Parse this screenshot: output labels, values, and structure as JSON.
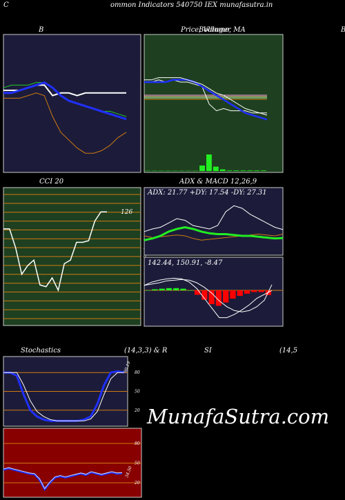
{
  "header": {
    "left": "C",
    "title": "ommon Indicators 540750 IEX munafasutra.in"
  },
  "titles": {
    "b": "B",
    "price": "Price, Volume, MA",
    "price_overlay": "Bollinger",
    "right_edge": "B",
    "cci": "CCI 20",
    "adx_macd": "ADX & MACD 12,26,9",
    "stoch": "Stochastics",
    "stoch_params": "(14,3,3) & R",
    "rsi": "SI",
    "rsi_params": "(14,5"
  },
  "watermark": "MunafaSutra.com",
  "colors": {
    "navy": "#1c1c3a",
    "green_panel": "#1e4020",
    "red_panel": "#880000",
    "orange": "#d07a10",
    "blue": "#2030ff",
    "bright_green": "#22ee22"
  },
  "chart_data": [
    {
      "type": "line",
      "name": "bollinger",
      "n": 16,
      "series": [
        {
          "role": "price",
          "values": [
            30,
            30,
            30,
            31,
            32,
            32,
            28,
            29,
            29,
            28,
            29,
            29,
            29,
            29,
            29,
            29
          ]
        },
        {
          "role": "upper",
          "values": [
            31,
            32,
            32,
            32,
            33,
            33,
            31,
            28,
            26,
            25,
            24,
            23,
            22,
            22,
            21,
            20
          ]
        },
        {
          "role": "middle",
          "values": [
            29,
            29,
            30,
            31,
            32,
            33,
            31,
            28,
            26,
            25,
            24,
            23,
            22,
            21,
            20,
            19
          ]
        },
        {
          "role": "lower",
          "values": [
            27,
            27,
            27,
            28,
            29,
            28,
            20,
            14,
            11,
            8,
            6,
            6,
            7,
            9,
            12,
            14
          ]
        }
      ],
      "ylim": [
        0,
        50
      ]
    },
    {
      "type": "line",
      "name": "price_volume_ma",
      "ylim": [
        0,
        50
      ],
      "series": [
        {
          "role": "price",
          "values": [
            30,
            30,
            31,
            30,
            31,
            30,
            30,
            29,
            28,
            20,
            17,
            18,
            17,
            17,
            17,
            16,
            16,
            16
          ]
        },
        {
          "role": "ma_blue",
          "values": [
            30,
            30,
            30,
            30,
            31,
            31,
            31,
            30,
            28,
            26,
            24,
            22,
            20,
            18,
            16,
            15,
            14,
            13
          ]
        },
        {
          "role": "ma_white",
          "values": [
            31,
            31,
            32,
            32,
            32,
            32,
            31,
            30,
            29,
            27,
            25,
            24,
            22,
            20,
            18,
            17,
            16,
            15
          ]
        }
      ],
      "volume": [
        0.5,
        0.5,
        0.5,
        0.5,
        0.5,
        0.5,
        0.5,
        0.5,
        10,
        30,
        8,
        3,
        1,
        1,
        1,
        1,
        1,
        1
      ]
    },
    {
      "type": "line",
      "name": "cci",
      "ylim": [
        -175,
        175
      ],
      "ticks": [
        "175",
        "150",
        "125",
        "100",
        "75",
        "50",
        "25",
        "0",
        "-25",
        "-50",
        "-75",
        "-100",
        "-125",
        "-150",
        "-175"
      ],
      "last_label": "126",
      "values": [
        78,
        78,
        25,
        -50,
        -25,
        -10,
        -80,
        -85,
        -60,
        -95,
        -20,
        -10,
        40,
        40,
        45,
        100,
        126,
        126
      ]
    },
    {
      "type": "line",
      "name": "adx",
      "label": "ADX: 21.77 +DY: 17.54 -DY: 27.31",
      "series": [
        {
          "role": "adx",
          "values": [
            20,
            18,
            19,
            20,
            21,
            20,
            17,
            15,
            16,
            17,
            18,
            19,
            20,
            21,
            22,
            21,
            20,
            22
          ]
        },
        {
          "role": "plus_di",
          "values": [
            15,
            17,
            20,
            25,
            28,
            30,
            28,
            25,
            23,
            22,
            22,
            21,
            20,
            20,
            19,
            18,
            17,
            17.5
          ]
        },
        {
          "role": "minus_di",
          "values": [
            25,
            28,
            30,
            35,
            40,
            38,
            32,
            30,
            28,
            32,
            48,
            55,
            52,
            45,
            40,
            35,
            30,
            27.3
          ]
        }
      ],
      "ylim": [
        0,
        60
      ]
    },
    {
      "type": "line",
      "name": "macd",
      "label": "142.44, 150.91, -8.47",
      "series": [
        {
          "role": "macd",
          "values": [
            150,
            155,
            158,
            160,
            161,
            160,
            155,
            145,
            130,
            115,
            100,
            100,
            105,
            112,
            120,
            130,
            136,
            142
          ]
        },
        {
          "role": "signal",
          "values": [
            150,
            152,
            154,
            157,
            158,
            159,
            158,
            154,
            147,
            138,
            126,
            117,
            111,
            109,
            111,
            117,
            127,
            151
          ]
        }
      ],
      "histogram": [
        0,
        2,
        3,
        4,
        4,
        3,
        0,
        -8,
        -17,
        -25,
        -28,
        -22,
        -15,
        -10,
        -6,
        -3,
        -3,
        -8.47
      ],
      "ylim": [
        90,
        170
      ]
    },
    {
      "type": "line",
      "name": "stochastics",
      "ylim": [
        0,
        100
      ],
      "ticks": [
        "80",
        "50",
        "20"
      ],
      "last_label": "80.19",
      "series": [
        {
          "role": "k",
          "values": [
            80,
            80,
            75,
            45,
            20,
            10,
            5,
            3,
            3,
            3,
            3,
            3,
            5,
            10,
            30,
            60,
            80,
            82,
            80
          ]
        },
        {
          "role": "d",
          "values": [
            80,
            80,
            80,
            60,
            35,
            18,
            10,
            5,
            3,
            3,
            3,
            3,
            3,
            6,
            18,
            45,
            70,
            80,
            80
          ]
        }
      ]
    },
    {
      "type": "line",
      "name": "rsi",
      "ylim": [
        0,
        100
      ],
      "ticks": [
        "80",
        "50",
        "20"
      ],
      "last_label": "34.50",
      "values": [
        40,
        42,
        40,
        38,
        36,
        34,
        33,
        25,
        10,
        20,
        28,
        30,
        28,
        30,
        32,
        34,
        32,
        36,
        34,
        32,
        34,
        36,
        34,
        34.5
      ]
    }
  ]
}
